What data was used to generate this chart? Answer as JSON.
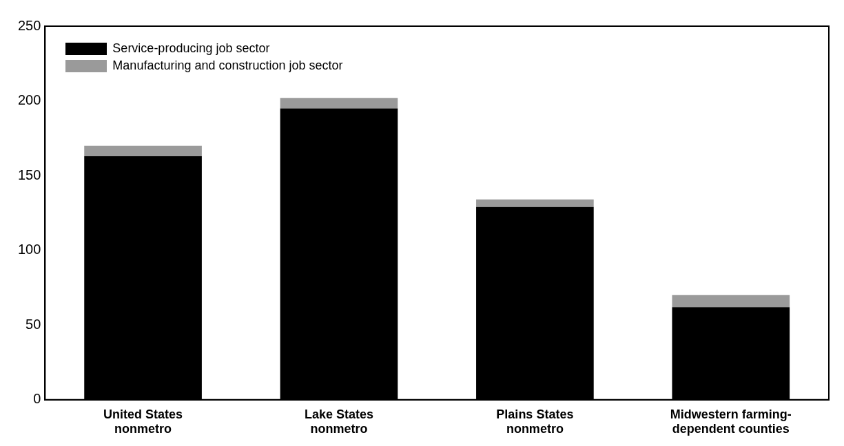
{
  "chart_data": {
    "type": "bar",
    "stacked": true,
    "categories": [
      "United States\nnonmetro",
      "Lake States\nnonmetro",
      "Plains States\nnonmetro",
      "Midwestern farming-\ndependent counties"
    ],
    "series": [
      {
        "name": "Service-producing job sector",
        "color": "#000000",
        "values": [
          163,
          195,
          129,
          62
        ]
      },
      {
        "name": "Manufacturing and construction job sector",
        "color": "#9a9a9a",
        "values": [
          7,
          7,
          5,
          8
        ]
      }
    ],
    "ylim": [
      0,
      250
    ],
    "yticks": [
      0,
      50,
      100,
      150,
      200,
      250
    ],
    "grid": false,
    "legend": "top left"
  }
}
